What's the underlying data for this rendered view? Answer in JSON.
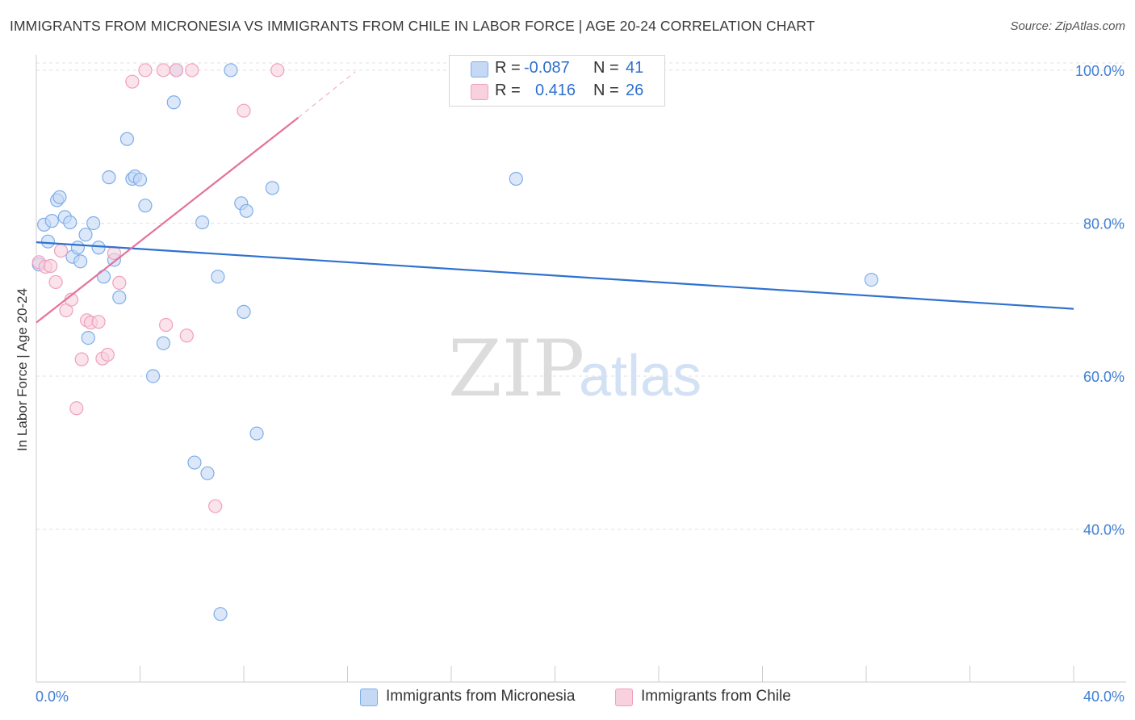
{
  "header": {
    "title": "IMMIGRANTS FROM MICRONESIA VS IMMIGRANTS FROM CHILE IN LABOR FORCE | AGE 20-24 CORRELATION CHART",
    "source": "Source: ZipAtlas.com"
  },
  "legend": {
    "series": [
      {
        "r_label": "R =",
        "r_value": "-0.087",
        "n_label": "N =",
        "n_value": "41"
      },
      {
        "r_label": "R =",
        "r_value": "0.416",
        "n_label": "N =",
        "n_value": "26"
      }
    ]
  },
  "bottom_legend": {
    "micronesia": "Immigrants from Micronesia",
    "chile": "Immigrants from Chile"
  },
  "watermark": {
    "zip": "ZIP",
    "atlas": "atlas"
  },
  "colors": {
    "blue_fill": "#c5d9f5",
    "blue_stroke": "#7eaee8",
    "blue_line": "#2e72cf",
    "pink_fill": "#f9d0de",
    "pink_stroke": "#f0a0bc",
    "pink_line": "#e4729a",
    "axis_text": "#3f7fd4",
    "grid": "#e2e2e2"
  },
  "chart_data": {
    "type": "scatter",
    "title": "IMMIGRANTS FROM MICRONESIA VS IMMIGRANTS FROM CHILE IN LABOR FORCE | AGE 20-24 CORRELATION CHART",
    "xlabel": "",
    "ylabel": "In Labor Force | Age 20-24",
    "xlim": [
      0,
      40
    ],
    "ylim": [
      20,
      102
    ],
    "x_tick_labels": [
      "0.0%",
      "40.0%"
    ],
    "y_ticks": [
      40,
      60,
      80,
      100
    ],
    "y_tick_labels": [
      "40.0%",
      "60.0%",
      "80.0%",
      "100.0%"
    ],
    "grid": true,
    "series": [
      {
        "name": "Immigrants from Micronesia",
        "color": "blue",
        "r": -0.087,
        "n": 41,
        "trend": {
          "x": [
            0,
            40
          ],
          "y": [
            77.5,
            68.8
          ]
        },
        "points": [
          {
            "x": 0.1,
            "y": 74.6
          },
          {
            "x": 0.3,
            "y": 79.8
          },
          {
            "x": 0.45,
            "y": 77.6
          },
          {
            "x": 0.6,
            "y": 80.3
          },
          {
            "x": 0.8,
            "y": 83.0
          },
          {
            "x": 0.9,
            "y": 83.4
          },
          {
            "x": 1.1,
            "y": 80.8
          },
          {
            "x": 1.3,
            "y": 80.1
          },
          {
            "x": 1.4,
            "y": 75.6
          },
          {
            "x": 1.6,
            "y": 76.8
          },
          {
            "x": 1.7,
            "y": 75.0
          },
          {
            "x": 1.9,
            "y": 78.5
          },
          {
            "x": 2.0,
            "y": 65.0
          },
          {
            "x": 2.2,
            "y": 80.0
          },
          {
            "x": 2.4,
            "y": 76.8
          },
          {
            "x": 2.6,
            "y": 73.0
          },
          {
            "x": 2.8,
            "y": 86.0
          },
          {
            "x": 3.0,
            "y": 75.2
          },
          {
            "x": 3.2,
            "y": 70.3
          },
          {
            "x": 3.5,
            "y": 91.0
          },
          {
            "x": 3.7,
            "y": 85.8
          },
          {
            "x": 3.8,
            "y": 86.1
          },
          {
            "x": 4.0,
            "y": 85.7
          },
          {
            "x": 4.2,
            "y": 82.3
          },
          {
            "x": 4.5,
            "y": 60.0
          },
          {
            "x": 4.9,
            "y": 64.3
          },
          {
            "x": 5.3,
            "y": 95.8
          },
          {
            "x": 5.4,
            "y": 100.0
          },
          {
            "x": 6.1,
            "y": 48.7
          },
          {
            "x": 6.4,
            "y": 80.1
          },
          {
            "x": 6.6,
            "y": 47.3
          },
          {
            "x": 7.0,
            "y": 73.0
          },
          {
            "x": 7.1,
            "y": 28.9
          },
          {
            "x": 7.5,
            "y": 100.0
          },
          {
            "x": 7.9,
            "y": 82.6
          },
          {
            "x": 8.0,
            "y": 68.4
          },
          {
            "x": 8.1,
            "y": 81.6
          },
          {
            "x": 8.5,
            "y": 52.5
          },
          {
            "x": 9.1,
            "y": 84.6
          },
          {
            "x": 18.5,
            "y": 85.8
          },
          {
            "x": 32.2,
            "y": 72.6
          }
        ]
      },
      {
        "name": "Immigrants from Chile",
        "color": "pink",
        "r": 0.416,
        "n": 26,
        "trend": {
          "x": [
            0,
            10.1
          ],
          "y": [
            67.0,
            93.8
          ]
        },
        "trend_dashed": {
          "x": [
            10.1,
            12.3
          ],
          "y": [
            93.8,
            99.8
          ]
        },
        "points": [
          {
            "x": 0.1,
            "y": 74.9
          },
          {
            "x": 0.35,
            "y": 74.3
          },
          {
            "x": 0.55,
            "y": 74.4
          },
          {
            "x": 0.75,
            "y": 72.3
          },
          {
            "x": 0.95,
            "y": 76.4
          },
          {
            "x": 1.15,
            "y": 68.6
          },
          {
            "x": 1.35,
            "y": 70.0
          },
          {
            "x": 1.55,
            "y": 55.8
          },
          {
            "x": 1.75,
            "y": 62.2
          },
          {
            "x": 1.95,
            "y": 67.3
          },
          {
            "x": 2.1,
            "y": 67.0
          },
          {
            "x": 2.4,
            "y": 67.1
          },
          {
            "x": 2.55,
            "y": 62.3
          },
          {
            "x": 2.75,
            "y": 62.8
          },
          {
            "x": 3.0,
            "y": 76.1
          },
          {
            "x": 3.2,
            "y": 72.2
          },
          {
            "x": 3.7,
            "y": 98.5
          },
          {
            "x": 4.2,
            "y": 100.0
          },
          {
            "x": 4.9,
            "y": 100.0
          },
          {
            "x": 5.0,
            "y": 66.7
          },
          {
            "x": 5.4,
            "y": 100.0
          },
          {
            "x": 5.8,
            "y": 65.3
          },
          {
            "x": 6.0,
            "y": 100.0
          },
          {
            "x": 6.9,
            "y": 43.0
          },
          {
            "x": 8.0,
            "y": 94.7
          },
          {
            "x": 9.3,
            "y": 100.0
          }
        ]
      }
    ]
  }
}
